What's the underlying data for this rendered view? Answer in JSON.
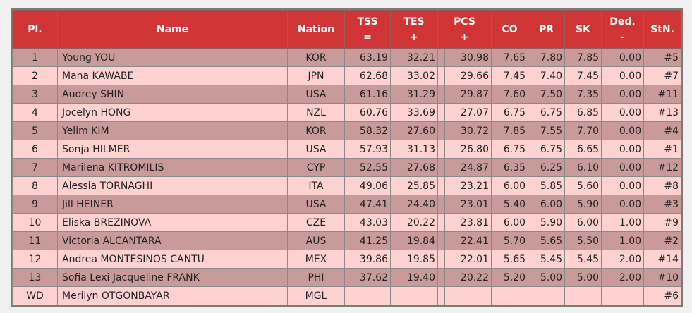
{
  "table": {
    "headers": [
      {
        "title": "Pl."
      },
      {
        "title": "Name"
      },
      {
        "title": "Nation"
      },
      {
        "title": "TSS",
        "sub": "="
      },
      {
        "title": "TES",
        "sub": "+"
      },
      {
        "title": "PCS",
        "sub": "+"
      },
      {
        "title": "CO"
      },
      {
        "title": "PR"
      },
      {
        "title": "SK"
      },
      {
        "title": "Ded.",
        "sub": "-"
      },
      {
        "title": "StN."
      }
    ],
    "rows": [
      {
        "pl": "1",
        "name": "Young YOU",
        "nation": "KOR",
        "tss": "63.19",
        "tes": "32.21",
        "pcs": "30.98",
        "co": "7.65",
        "pr": "7.80",
        "sk": "7.85",
        "ded": "0.00",
        "stn": "#5"
      },
      {
        "pl": "2",
        "name": "Mana KAWABE",
        "nation": "JPN",
        "tss": "62.68",
        "tes": "33.02",
        "pcs": "29.66",
        "co": "7.45",
        "pr": "7.40",
        "sk": "7.45",
        "ded": "0.00",
        "stn": "#7"
      },
      {
        "pl": "3",
        "name": "Audrey SHIN",
        "nation": "USA",
        "tss": "61.16",
        "tes": "31.29",
        "pcs": "29.87",
        "co": "7.60",
        "pr": "7.50",
        "sk": "7.35",
        "ded": "0.00",
        "stn": "#11"
      },
      {
        "pl": "4",
        "name": "Jocelyn HONG",
        "nation": "NZL",
        "tss": "60.76",
        "tes": "33.69",
        "pcs": "27.07",
        "co": "6.75",
        "pr": "6.75",
        "sk": "6.85",
        "ded": "0.00",
        "stn": "#13"
      },
      {
        "pl": "5",
        "name": "Yelim KIM",
        "nation": "KOR",
        "tss": "58.32",
        "tes": "27.60",
        "pcs": "30.72",
        "co": "7.85",
        "pr": "7.55",
        "sk": "7.70",
        "ded": "0.00",
        "stn": "#4"
      },
      {
        "pl": "6",
        "name": "Sonja HILMER",
        "nation": "USA",
        "tss": "57.93",
        "tes": "31.13",
        "pcs": "26.80",
        "co": "6.75",
        "pr": "6.75",
        "sk": "6.65",
        "ded": "0.00",
        "stn": "#1"
      },
      {
        "pl": "7",
        "name": "Marilena KITROMILIS",
        "nation": "CYP",
        "tss": "52.55",
        "tes": "27.68",
        "pcs": "24.87",
        "co": "6.35",
        "pr": "6.25",
        "sk": "6.10",
        "ded": "0.00",
        "stn": "#12"
      },
      {
        "pl": "8",
        "name": "Alessia TORNAGHI",
        "nation": "ITA",
        "tss": "49.06",
        "tes": "25.85",
        "pcs": "23.21",
        "co": "6.00",
        "pr": "5.85",
        "sk": "5.60",
        "ded": "0.00",
        "stn": "#8"
      },
      {
        "pl": "9",
        "name": "Jill HEINER",
        "nation": "USA",
        "tss": "47.41",
        "tes": "24.40",
        "pcs": "23.01",
        "co": "5.40",
        "pr": "6.00",
        "sk": "5.90",
        "ded": "0.00",
        "stn": "#3"
      },
      {
        "pl": "10",
        "name": "Eliska BREZINOVA",
        "nation": "CZE",
        "tss": "43.03",
        "tes": "20.22",
        "pcs": "23.81",
        "co": "6.00",
        "pr": "5.90",
        "sk": "6.00",
        "ded": "1.00",
        "stn": "#9"
      },
      {
        "pl": "11",
        "name": "Victoria ALCANTARA",
        "nation": "AUS",
        "tss": "41.25",
        "tes": "19.84",
        "pcs": "22.41",
        "co": "5.70",
        "pr": "5.65",
        "sk": "5.50",
        "ded": "1.00",
        "stn": "#2"
      },
      {
        "pl": "12",
        "name": "Andrea MONTESINOS CANTU",
        "nation": "MEX",
        "tss": "39.86",
        "tes": "19.85",
        "pcs": "22.01",
        "co": "5.65",
        "pr": "5.45",
        "sk": "5.45",
        "ded": "2.00",
        "stn": "#14"
      },
      {
        "pl": "13",
        "name": "Sofia Lexi Jacqueline FRANK",
        "nation": "PHI",
        "tss": "37.62",
        "tes": "19.40",
        "pcs": "20.22",
        "co": "5.20",
        "pr": "5.00",
        "sk": "5.00",
        "ded": "2.00",
        "stn": "#10"
      },
      {
        "pl": "WD",
        "name": "Merilyn OTGONBAYAR",
        "nation": "MGL",
        "stn": "#6"
      }
    ]
  }
}
